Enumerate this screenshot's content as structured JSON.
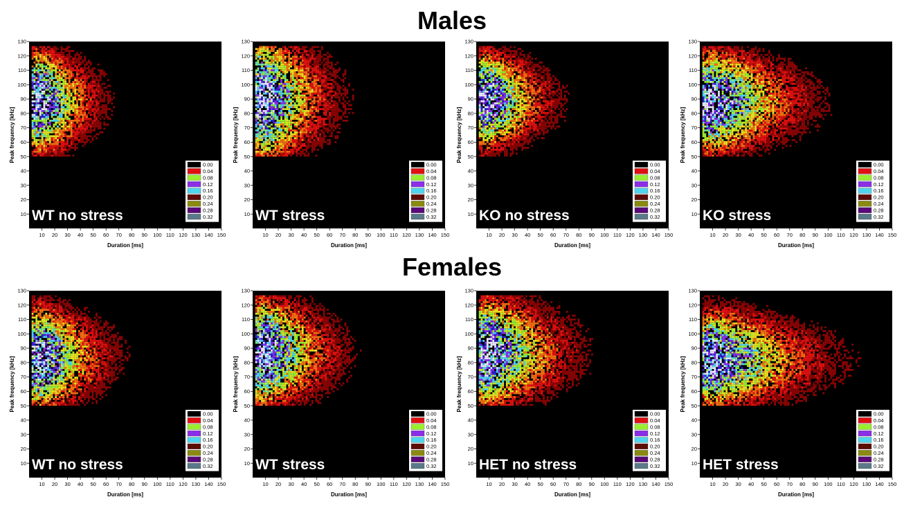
{
  "sections": {
    "males": "Males",
    "females": "Females"
  },
  "legend_levels": [
    "0.00",
    "0.04",
    "0.08",
    "0.12",
    "0.16",
    "0.20",
    "0.24",
    "0.28",
    "0.32"
  ],
  "legend_colors": [
    "#000000",
    "#e01010",
    "#9aee30",
    "#8a2ee8",
    "#4fd4ee",
    "#5c0c06",
    "#8a8a10",
    "#5a0a78",
    "#5a7a8a"
  ],
  "chart_data": [
    {
      "type": "heatmap",
      "group": "Males",
      "label": "WT no stress",
      "xlabel": "Duration [ms]",
      "ylabel": "Peak frequency [kHz]",
      "xlim": [
        0,
        150
      ],
      "ylim": [
        0,
        130
      ],
      "x_ticks": [
        10,
        20,
        30,
        40,
        50,
        60,
        70,
        80,
        90,
        100,
        110,
        120,
        130,
        140,
        150
      ],
      "y_ticks": [
        10,
        20,
        30,
        40,
        50,
        60,
        70,
        80,
        90,
        100,
        110,
        120,
        130
      ],
      "peak_frequency_khz": [
        80,
        95
      ],
      "duration_spread_ms": 45,
      "density_max": 0.32
    },
    {
      "type": "heatmap",
      "group": "Males",
      "label": "WT stress",
      "xlabel": "Duration [ms]",
      "ylabel": "Peak frequency [kHz]",
      "xlim": [
        0,
        150
      ],
      "ylim": [
        0,
        130
      ],
      "x_ticks": [
        10,
        20,
        30,
        40,
        50,
        60,
        70,
        80,
        90,
        100,
        110,
        120,
        130,
        140,
        150
      ],
      "y_ticks": [
        10,
        20,
        30,
        40,
        50,
        60,
        70,
        80,
        90,
        100,
        110,
        120,
        130
      ],
      "peak_frequency_khz": [
        78,
        100
      ],
      "duration_spread_ms": 55,
      "density_max": 0.32
    },
    {
      "type": "heatmap",
      "group": "Males",
      "label": "KO no stress",
      "xlabel": "Duration [ms]",
      "ylabel": "Peak frequency [kHz]",
      "xlim": [
        0,
        150
      ],
      "ylim": [
        0,
        130
      ],
      "x_ticks": [
        10,
        20,
        30,
        40,
        50,
        60,
        70,
        80,
        90,
        100,
        110,
        120,
        130,
        140,
        150
      ],
      "y_ticks": [
        10,
        20,
        30,
        40,
        50,
        60,
        70,
        80,
        90,
        100,
        110,
        120,
        130
      ],
      "peak_frequency_khz": [
        82,
        95
      ],
      "duration_spread_ms": 50,
      "density_max": 0.32
    },
    {
      "type": "heatmap",
      "group": "Males",
      "label": "KO stress",
      "xlabel": "Duration [ms]",
      "ylabel": "Peak frequency [kHz]",
      "xlim": [
        0,
        150
      ],
      "ylim": [
        0,
        130
      ],
      "x_ticks": [
        10,
        20,
        30,
        40,
        50,
        60,
        70,
        80,
        90,
        100,
        110,
        120,
        130,
        140,
        150
      ],
      "y_ticks": [
        10,
        20,
        30,
        40,
        50,
        60,
        70,
        80,
        90,
        100,
        110,
        120,
        130
      ],
      "peak_frequency_khz": [
        80,
        95
      ],
      "duration_spread_ms": 80,
      "density_max": 0.32
    },
    {
      "type": "heatmap",
      "group": "Females",
      "label": "WT no stress",
      "xlabel": "Duration [ms]",
      "ylabel": "Peak frequency [kHz]",
      "xlim": [
        0,
        150
      ],
      "ylim": [
        0,
        130
      ],
      "x_ticks": [
        10,
        20,
        30,
        40,
        50,
        60,
        70,
        80,
        90,
        100,
        110,
        120,
        130,
        140,
        150
      ],
      "y_ticks": [
        10,
        20,
        30,
        40,
        50,
        60,
        70,
        80,
        90,
        100,
        110,
        120,
        130
      ],
      "peak_frequency_khz": [
        75,
        90
      ],
      "duration_spread_ms": 55,
      "density_max": 0.32
    },
    {
      "type": "heatmap",
      "group": "Females",
      "label": "WT stress",
      "xlabel": "Duration [ms]",
      "ylabel": "Peak frequency [kHz]",
      "xlim": [
        0,
        150
      ],
      "ylim": [
        0,
        130
      ],
      "x_ticks": [
        10,
        20,
        30,
        40,
        50,
        60,
        70,
        80,
        90,
        100,
        110,
        120,
        130,
        140,
        150
      ],
      "y_ticks": [
        10,
        20,
        30,
        40,
        50,
        60,
        70,
        80,
        90,
        100,
        110,
        120,
        130
      ],
      "peak_frequency_khz": [
        78,
        95
      ],
      "duration_spread_ms": 60,
      "density_max": 0.32
    },
    {
      "type": "heatmap",
      "group": "Females",
      "label": "HET no stress",
      "xlabel": "Duration [ms]",
      "ylabel": "Peak frequency [kHz]",
      "xlim": [
        0,
        150
      ],
      "ylim": [
        0,
        130
      ],
      "x_ticks": [
        10,
        20,
        30,
        40,
        50,
        60,
        70,
        80,
        90,
        100,
        110,
        120,
        130,
        140,
        150
      ],
      "y_ticks": [
        10,
        20,
        30,
        40,
        50,
        60,
        70,
        80,
        90,
        100,
        110,
        120,
        130
      ],
      "peak_frequency_khz": [
        78,
        95
      ],
      "duration_spread_ms": 70,
      "density_max": 0.32
    },
    {
      "type": "heatmap",
      "group": "Females",
      "label": "HET stress",
      "xlabel": "Duration [ms]",
      "ylabel": "Peak frequency [kHz]",
      "xlim": [
        0,
        150
      ],
      "ylim": [
        0,
        130
      ],
      "x_ticks": [
        10,
        20,
        30,
        40,
        50,
        60,
        70,
        80,
        90,
        100,
        110,
        120,
        130,
        140,
        150
      ],
      "y_ticks": [
        10,
        20,
        30,
        40,
        50,
        60,
        70,
        80,
        90,
        100,
        110,
        120,
        130
      ],
      "peak_frequency_khz": [
        75,
        88
      ],
      "duration_spread_ms": 100,
      "density_max": 0.32
    }
  ]
}
